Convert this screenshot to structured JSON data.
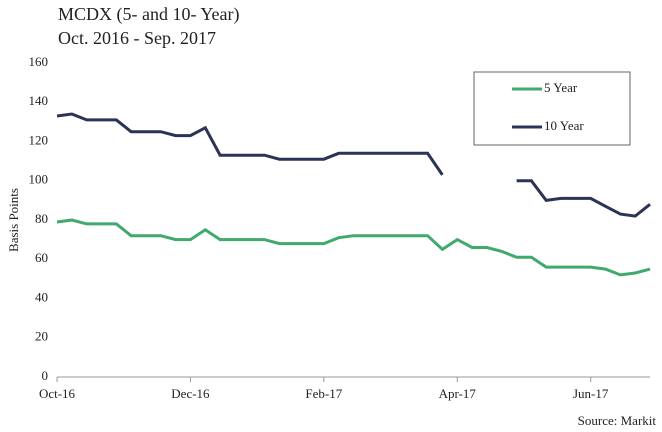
{
  "chart_data": {
    "type": "line",
    "title": "MCDX (5- and 10- Year)",
    "subtitle": "Oct. 2016 - Sep. 2017",
    "y_label": "Basis Points",
    "source": "Source: Markit",
    "categories": [
      "Oct-16",
      null,
      null,
      null,
      null,
      null,
      null,
      null,
      null,
      "Dec-16",
      null,
      null,
      null,
      null,
      null,
      null,
      null,
      null,
      "Feb-17",
      null,
      null,
      null,
      null,
      null,
      null,
      null,
      null,
      "Apr-17",
      null,
      null,
      null,
      null,
      null,
      null,
      null,
      null,
      "Jun-17",
      null,
      null,
      null,
      null
    ],
    "series": [
      {
        "name": "5 Year",
        "color": "#3faa6c",
        "values": [
          79,
          80,
          78,
          78,
          78,
          72,
          72,
          72,
          70,
          70,
          75,
          70,
          70,
          70,
          70,
          68,
          68,
          68,
          68,
          71,
          72,
          72,
          72,
          72,
          72,
          72,
          65,
          70,
          66,
          66,
          64,
          61,
          61,
          56,
          56,
          56,
          56,
          55,
          52,
          53,
          55
        ]
      },
      {
        "name": "10 Year",
        "color": "#2b3457",
        "values": [
          133,
          134,
          131,
          131,
          131,
          125,
          125,
          125,
          123,
          123,
          127,
          113,
          113,
          113,
          113,
          111,
          111,
          111,
          111,
          114,
          114,
          114,
          114,
          114,
          114,
          114,
          103,
          null,
          null,
          null,
          null,
          100,
          100,
          90,
          91,
          91,
          91,
          87,
          83,
          82,
          88
        ]
      }
    ],
    "ylim": [
      0,
      160
    ],
    "yticks": [
      0,
      20,
      40,
      60,
      80,
      100,
      120,
      140,
      160
    ],
    "grid": false,
    "legend": "top-right"
  }
}
